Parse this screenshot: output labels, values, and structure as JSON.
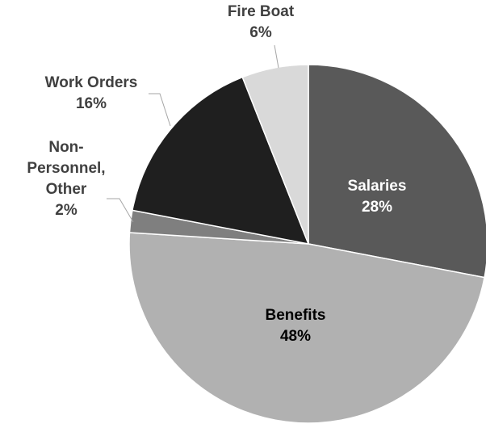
{
  "chart_data": {
    "type": "pie",
    "title": "",
    "slices": [
      {
        "label_lines": [
          "Salaries"
        ],
        "value": 28,
        "value_label": "28%",
        "color": "#595959",
        "label_color": "#ffffff"
      },
      {
        "label_lines": [
          "Benefits"
        ],
        "value": 48,
        "value_label": "48%",
        "color": "#b1b1b1",
        "label_color": "#000000"
      },
      {
        "label_lines": [
          "Non-",
          "Personnel,",
          "Other"
        ],
        "value": 2,
        "value_label": "2%",
        "color": "#7f7f7f",
        "label_color": "#404040"
      },
      {
        "label_lines": [
          "Work Orders"
        ],
        "value": 16,
        "value_label": "16%",
        "color": "#1f1f1f",
        "label_color": "#404040"
      },
      {
        "label_lines": [
          "Fire Boat"
        ],
        "value": 6,
        "value_label": "6%",
        "color": "#d9d9d9",
        "label_color": "#404040"
      }
    ],
    "start_angle_deg": 0,
    "direction": "clockwise",
    "legend": "none"
  }
}
